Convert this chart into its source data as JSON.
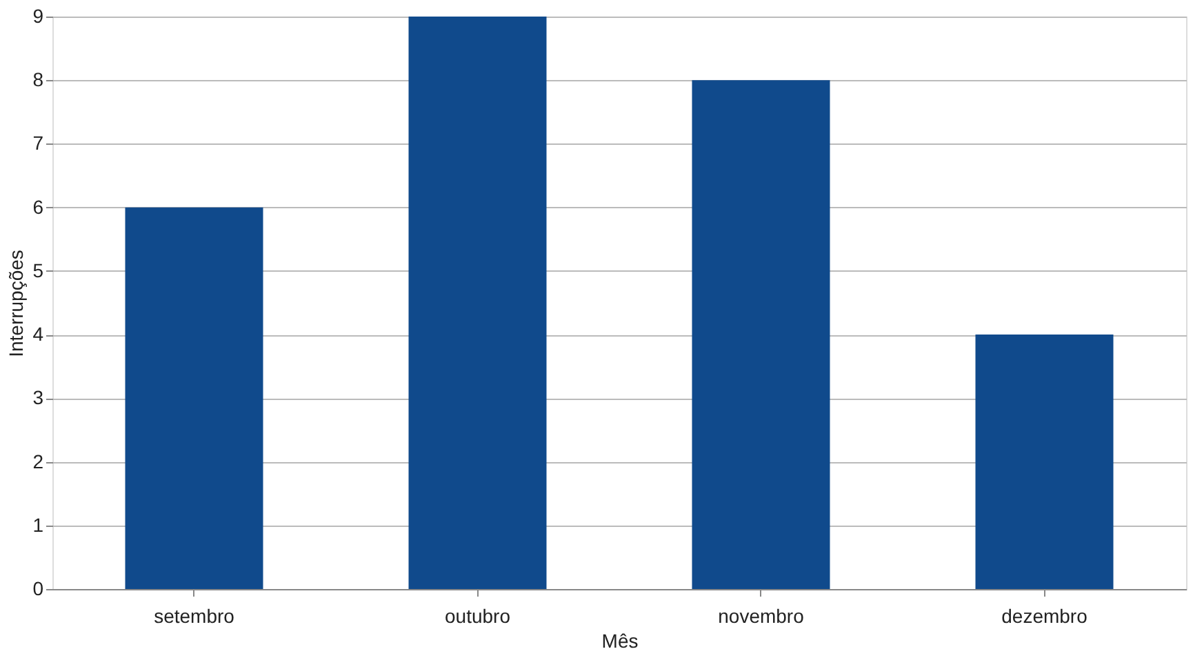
{
  "chart_data": {
    "type": "bar",
    "xlabel": "Mês",
    "ylabel": "Interrupções",
    "categories": [
      "setembro",
      "outubro",
      "novembro",
      "dezembro"
    ],
    "values": [
      6,
      9,
      8,
      4
    ],
    "color": "#104a8c",
    "ylim": [
      0,
      9
    ],
    "yticks": [
      0,
      1,
      2,
      3,
      4,
      5,
      6,
      7,
      8,
      9
    ],
    "grid": "y"
  }
}
